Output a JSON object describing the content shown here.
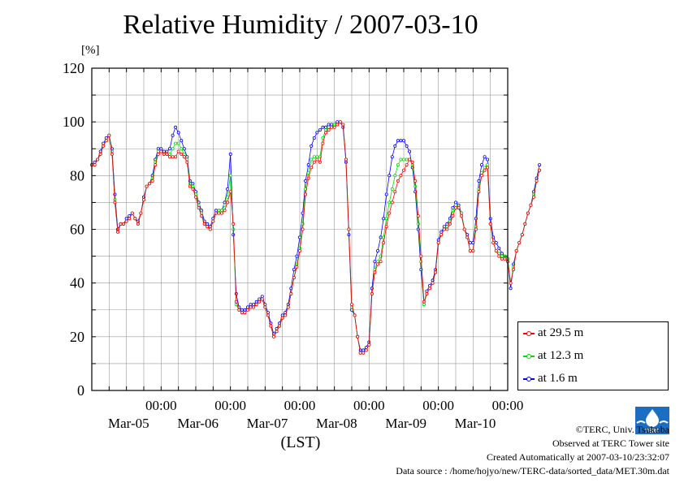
{
  "title": "Relative Humidity / 2007-03-10",
  "unit_label": "[%]",
  "footer": {
    "copyright": "©TERC, Univ. Tsukuba",
    "observed": "Observed at TERC Tower site",
    "created": "Created Automatically at 2007-03-10/23:32:07",
    "source": "Data source : /home/hojyo/new/TERC-data/sorted_data/MET.30m.dat"
  },
  "logo_text": "TERC",
  "chart_data": {
    "type": "line",
    "title": "Relative Humidity / 2007-03-10",
    "xlabel": "(LST)",
    "ylabel": "[%]",
    "ylim": [
      0,
      120
    ],
    "yticks": [
      0,
      20,
      40,
      60,
      80,
      100,
      120
    ],
    "xlim": [
      -1.0,
      5.0
    ],
    "x_unit": "days since 2007-03-05 00:00 LST",
    "xticks": [
      {
        "x": 0,
        "time": "00:00",
        "date": "Mar-05"
      },
      {
        "x": 1,
        "time": "00:00",
        "date": "Mar-06"
      },
      {
        "x": 2,
        "time": "00:00",
        "date": "Mar-07"
      },
      {
        "x": 3,
        "time": "00:00",
        "date": "Mar-08"
      },
      {
        "x": 4,
        "time": "00:00",
        "date": "Mar-09"
      },
      {
        "x": 5,
        "time": "00:00",
        "date": "Mar-10"
      }
    ],
    "grid": true,
    "legend_position": "bottom-right outside",
    "x_sampling": {
      "start": -1.0,
      "step_hours": 1
    },
    "series": [
      {
        "name": "at 29.5 m",
        "color": "#ff0000",
        "values": [
          84,
          84,
          86,
          88,
          91,
          93,
          95,
          88,
          70,
          59,
          62,
          62,
          63,
          64,
          66,
          64,
          62,
          66,
          71,
          76,
          77,
          78,
          84,
          88,
          89,
          88,
          88,
          87,
          87,
          87,
          89,
          88,
          87,
          85,
          76,
          75,
          72,
          68,
          65,
          62,
          61,
          60,
          63,
          66,
          66,
          66,
          67,
          70,
          74,
          62,
          33,
          30,
          29,
          29,
          30,
          31,
          31,
          32,
          33,
          34,
          31,
          28,
          24,
          20,
          22,
          24,
          27,
          28,
          31,
          36,
          42,
          46,
          52,
          60,
          73,
          79,
          83,
          85,
          86,
          85,
          92,
          96,
          97,
          98,
          98,
          99,
          100,
          99,
          86,
          60,
          32,
          28,
          20,
          14,
          14,
          15,
          17,
          36,
          44,
          47,
          48,
          55,
          61,
          66,
          70,
          74,
          78,
          80,
          82,
          84,
          86,
          85,
          78,
          65,
          50,
          33,
          36,
          38,
          40,
          44,
          55,
          58,
          60,
          60,
          62,
          65,
          68,
          68,
          65,
          60,
          57,
          52,
          52,
          60,
          74,
          80,
          82,
          83,
          62,
          55,
          52,
          50,
          49,
          49,
          48,
          40,
          45,
          52,
          55,
          58,
          62,
          66,
          69,
          72,
          78,
          82
        ]
      },
      {
        "name": "at 12.3 m",
        "color": "#00dd00",
        "values": [
          84,
          84,
          86,
          88,
          91,
          93,
          95,
          89,
          71,
          59,
          62,
          62,
          63,
          64,
          66,
          64,
          62,
          66,
          71,
          76,
          77,
          79,
          85,
          89,
          89,
          88,
          88,
          88,
          90,
          92,
          92,
          90,
          88,
          86,
          77,
          76,
          73,
          69,
          66,
          62,
          61,
          60,
          63,
          66,
          67,
          67,
          69,
          72,
          80,
          60,
          32,
          30,
          29,
          29,
          30,
          31,
          31,
          32,
          33,
          34,
          31,
          28,
          24,
          20,
          22,
          24,
          27,
          28,
          31,
          36,
          42,
          47,
          53,
          62,
          75,
          81,
          86,
          87,
          87,
          87,
          94,
          97,
          98,
          98,
          99,
          99,
          100,
          99,
          86,
          60,
          31,
          28,
          20,
          14,
          14,
          15,
          17,
          36,
          45,
          48,
          50,
          57,
          64,
          70,
          75,
          80,
          84,
          86,
          86,
          86,
          86,
          84,
          76,
          62,
          48,
          32,
          36,
          38,
          40,
          44,
          55,
          58,
          60,
          61,
          63,
          67,
          69,
          68,
          66,
          60,
          57,
          52,
          52,
          61,
          75,
          81,
          83,
          84,
          62,
          55,
          52,
          51,
          50,
          50,
          49,
          40,
          46,
          52,
          55,
          58,
          62,
          66,
          69,
          73,
          78,
          82
        ]
      },
      {
        "name": "at 1.6 m",
        "color": "#0000ff",
        "values": [
          84,
          85,
          86,
          89,
          92,
          94,
          95,
          90,
          73,
          60,
          62,
          62,
          64,
          65,
          66,
          64,
          63,
          66,
          72,
          76,
          77,
          80,
          86,
          90,
          90,
          89,
          89,
          90,
          95,
          98,
          96,
          93,
          90,
          87,
          78,
          77,
          74,
          70,
          67,
          63,
          62,
          61,
          64,
          67,
          67,
          67,
          70,
          75,
          88,
          58,
          36,
          31,
          30,
          30,
          31,
          32,
          32,
          33,
          34,
          35,
          32,
          29,
          25,
          21,
          23,
          25,
          28,
          29,
          32,
          38,
          45,
          50,
          57,
          66,
          78,
          84,
          91,
          94,
          96,
          97,
          98,
          98,
          99,
          99,
          99,
          100,
          100,
          98,
          85,
          58,
          30,
          28,
          20,
          15,
          15,
          16,
          18,
          38,
          48,
          52,
          57,
          64,
          73,
          80,
          87,
          91,
          93,
          93,
          93,
          91,
          89,
          83,
          74,
          60,
          45,
          32,
          37,
          39,
          41,
          45,
          56,
          59,
          61,
          62,
          64,
          68,
          70,
          69,
          66,
          60,
          58,
          55,
          55,
          64,
          78,
          84,
          87,
          86,
          64,
          57,
          55,
          53,
          51,
          50,
          49,
          38,
          47,
          52,
          55,
          58,
          62,
          66,
          69,
          74,
          79,
          84
        ]
      }
    ]
  }
}
